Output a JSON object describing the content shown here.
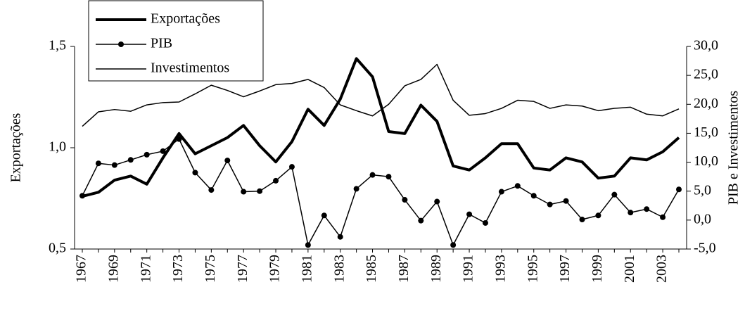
{
  "chart_data": {
    "type": "line",
    "y_label": "Exportações",
    "y2_label": "PIB e Investimentos",
    "categories": [
      "1967",
      null,
      "1969",
      null,
      "1971",
      null,
      "1973",
      null,
      "1975",
      null,
      "1977",
      null,
      "1979",
      null,
      "1981",
      null,
      "1983",
      null,
      "1985",
      null,
      "1987",
      null,
      "1989",
      null,
      "1991",
      null,
      "1993",
      null,
      "1995",
      null,
      "1997",
      null,
      "1999",
      null,
      "2001",
      null,
      "2003",
      null
    ],
    "ylim": [
      0.5,
      1.5
    ],
    "yticks": [
      {
        "value": 0.5,
        "label": "0,5"
      },
      {
        "value": 1.0,
        "label": "1,0"
      },
      {
        "value": 1.5,
        "label": "1,5"
      }
    ],
    "y2lim": [
      -5,
      30
    ],
    "y2ticks": [
      {
        "value": -5,
        "label": "-5,0"
      },
      {
        "value": 0,
        "label": "0,0"
      },
      {
        "value": 5,
        "label": "5,0"
      },
      {
        "value": 10,
        "label": "10,0"
      },
      {
        "value": 15,
        "label": "15,0"
      },
      {
        "value": 20,
        "label": "20,0"
      },
      {
        "value": 25,
        "label": "25,0"
      },
      {
        "value": 30,
        "label": "30,0"
      }
    ],
    "legend": "top-left",
    "series": [
      {
        "name": "Exportações",
        "color": "#000000",
        "line_width": 4,
        "values": [
          0.76,
          0.78,
          0.84,
          0.86,
          0.82,
          0.95,
          1.07,
          0.97,
          1.01,
          1.05,
          1.11,
          1.01,
          0.93,
          1.03,
          1.19,
          1.11,
          1.24,
          1.44,
          1.35,
          1.08,
          1.07,
          1.21,
          1.13,
          0.91,
          0.89,
          0.95,
          1.02,
          1.02,
          0.9,
          0.89,
          0.95,
          0.93,
          0.85,
          0.86,
          0.95,
          0.94,
          0.98,
          1.05
        ]
      },
      {
        "name": "PIB",
        "color": "#000000",
        "line_width": 1.5,
        "marker": "circle",
        "axis": "y2",
        "values": [
          4.2,
          9.8,
          9.5,
          10.4,
          11.3,
          11.9,
          14.0,
          8.2,
          5.2,
          10.3,
          4.9,
          5.0,
          6.8,
          9.2,
          -4.3,
          0.8,
          -2.9,
          5.4,
          7.8,
          7.5,
          3.5,
          -0.1,
          3.2,
          -4.3,
          1.0,
          -0.5,
          4.9,
          5.9,
          4.2,
          2.7,
          3.3,
          0.1,
          0.8,
          4.4,
          1.3,
          1.9,
          0.5,
          5.3
        ]
      },
      {
        "name": "Investimentos",
        "color": "#000000",
        "line_width": 1.5,
        "axis": "y2",
        "values": [
          16.2,
          18.7,
          19.1,
          18.8,
          19.9,
          20.3,
          20.4,
          21.8,
          23.3,
          22.4,
          21.3,
          22.3,
          23.4,
          23.6,
          24.3,
          22.9,
          19.9,
          18.9,
          18.0,
          20.0,
          23.2,
          24.3,
          26.9,
          20.7,
          18.1,
          18.4,
          19.3,
          20.7,
          20.5,
          19.3,
          19.9,
          19.7,
          18.9,
          19.3,
          19.5,
          18.3,
          18.0,
          19.2
        ]
      }
    ]
  }
}
